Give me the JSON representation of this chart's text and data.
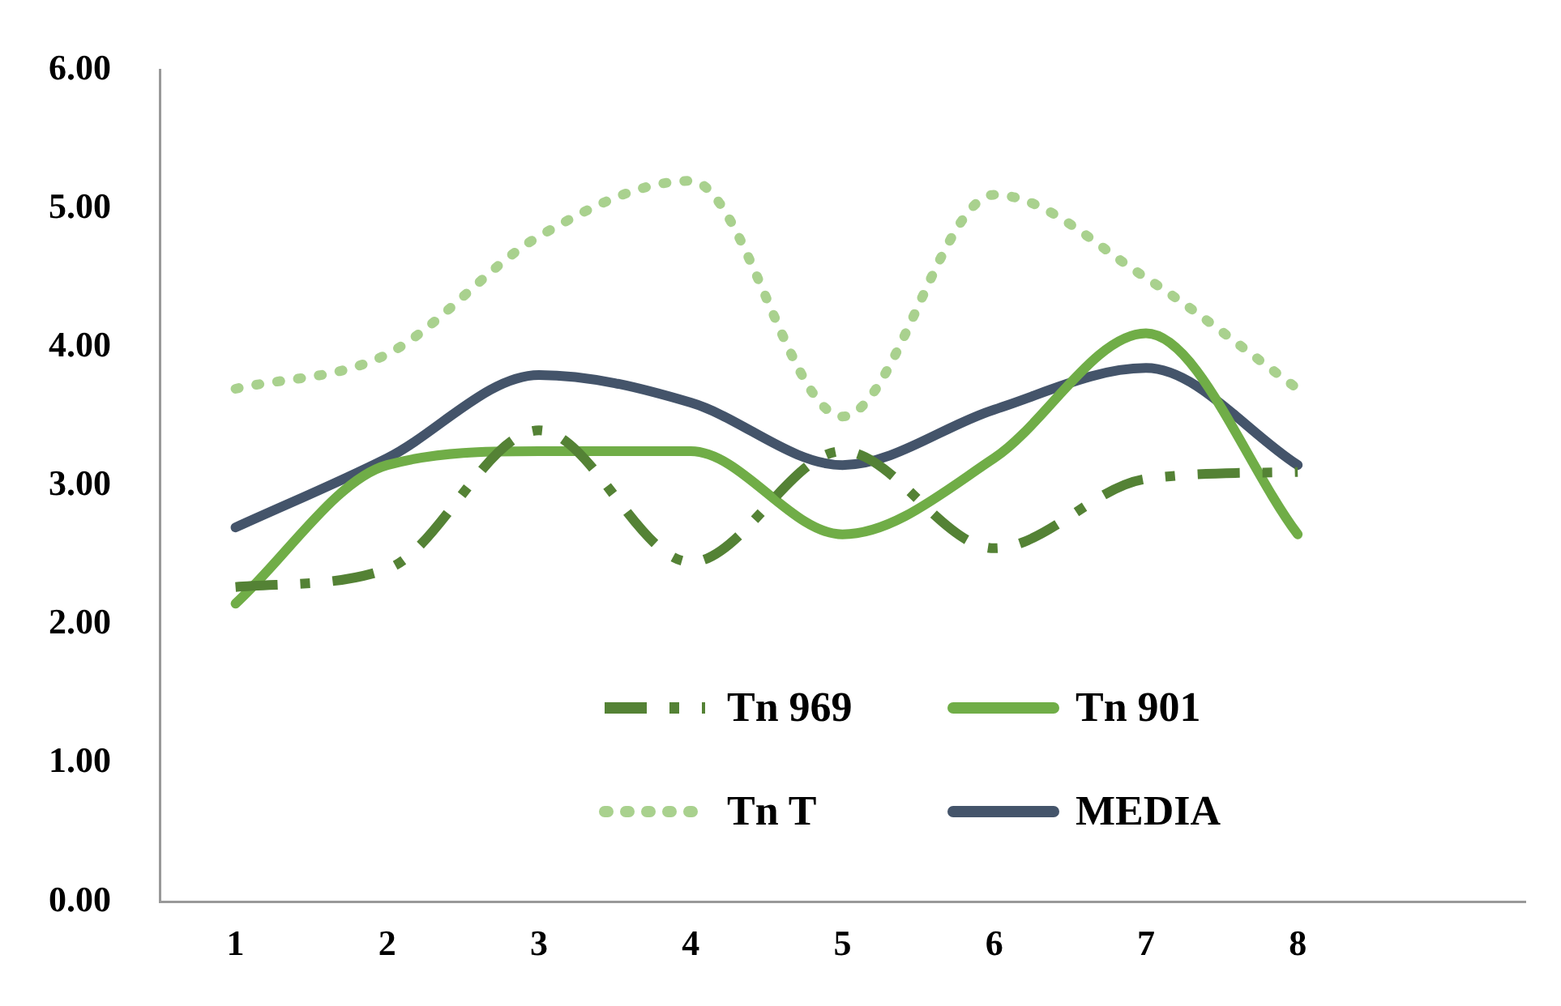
{
  "chart_data": {
    "type": "line",
    "categories": [
      "1",
      "2",
      "3",
      "4",
      "5",
      "6",
      "7",
      "8",
      null
    ],
    "ylim": [
      0,
      6
    ],
    "yticks": [
      {
        "value": 0,
        "label": "0.00"
      },
      {
        "value": 1,
        "label": "1.00"
      },
      {
        "value": 2,
        "label": "2.00"
      },
      {
        "value": 3,
        "label": "3.00"
      },
      {
        "value": 4,
        "label": "4.00"
      },
      {
        "value": 5,
        "label": "5.00"
      },
      {
        "value": 6,
        "label": "6.00"
      }
    ],
    "grid": false,
    "legend": "bottom",
    "marker": "none",
    "series": [
      {
        "name": "Tn 969",
        "color": "#548235",
        "line_style": "dashed",
        "values": [
          2.27,
          2.4,
          3.4,
          2.45,
          3.25,
          2.55,
          3.05,
          3.1,
          null
        ]
      },
      {
        "name": "Tn 901",
        "color": "#70ad47",
        "line_style": "solid",
        "values": [
          2.15,
          3.15,
          3.25,
          3.25,
          2.65,
          3.2,
          4.1,
          2.65,
          null
        ]
      },
      {
        "name": "Tn T",
        "color": "#a9d18e",
        "line_style": "dotted",
        "values": [
          3.7,
          3.95,
          4.8,
          5.2,
          3.5,
          5.1,
          4.5,
          3.7,
          null
        ]
      },
      {
        "name": "MEDIA",
        "color": "#44546a",
        "line_style": "solid",
        "values": [
          2.7,
          3.2,
          3.8,
          3.6,
          3.15,
          3.55,
          3.85,
          3.15,
          null
        ]
      }
    ]
  }
}
